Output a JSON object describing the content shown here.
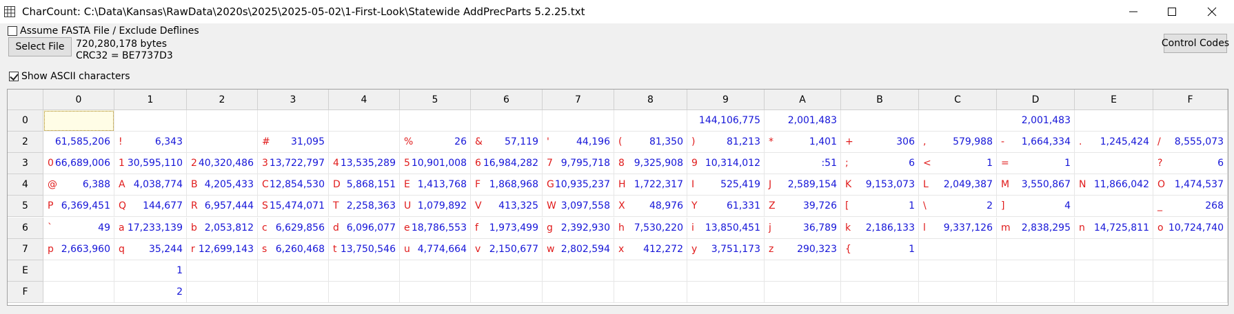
{
  "window": {
    "title": "CharCount:  C:\\Data\\Kansas\\RawData\\2020s\\2025\\2025-05-02\\1-First-Look\\Statewide AddPrecParts 5.2.25.txt",
    "minimize_glyph": "—",
    "maximize_glyph": "☐",
    "close_glyph": "✕"
  },
  "options": {
    "fasta_label": "Assume FASTA File / Exclude Deflines",
    "fasta_checked": false,
    "show_ascii_label": "Show ASCII characters",
    "show_ascii_checked": true
  },
  "file": {
    "select_label": "Select File",
    "size_text": "720,280,178 bytes",
    "crc_text": "CRC32 = BE7737D3"
  },
  "control_codes_label": "Control Codes",
  "grid": {
    "columns": [
      "0",
      "1",
      "2",
      "3",
      "4",
      "5",
      "6",
      "7",
      "8",
      "9",
      "A",
      "B",
      "C",
      "D",
      "E",
      "F"
    ],
    "rows": [
      {
        "label": "0",
        "cells": [
          {
            "c": "",
            "n": ""
          },
          {
            "c": "",
            "n": ""
          },
          {
            "c": "",
            "n": ""
          },
          {
            "c": "",
            "n": ""
          },
          {
            "c": "",
            "n": ""
          },
          {
            "c": "",
            "n": ""
          },
          {
            "c": "",
            "n": ""
          },
          {
            "c": "",
            "n": ""
          },
          {
            "c": "",
            "n": ""
          },
          {
            "c": "",
            "n": "144,106,775"
          },
          {
            "c": "",
            "n": "2,001,483"
          },
          {
            "c": "",
            "n": ""
          },
          {
            "c": "",
            "n": ""
          },
          {
            "c": "",
            "n": "2,001,483"
          },
          {
            "c": "",
            "n": ""
          },
          {
            "c": "",
            "n": ""
          }
        ]
      },
      {
        "label": "2",
        "cells": [
          {
            "c": "",
            "n": "61,585,206"
          },
          {
            "c": "!",
            "n": "6,343"
          },
          {
            "c": "",
            "n": ""
          },
          {
            "c": "#",
            "n": "31,095"
          },
          {
            "c": "",
            "n": ""
          },
          {
            "c": "%",
            "n": "26"
          },
          {
            "c": "&",
            "n": "57,119"
          },
          {
            "c": "'",
            "n": "44,196"
          },
          {
            "c": "(",
            "n": "81,350"
          },
          {
            "c": ")",
            "n": "81,213"
          },
          {
            "c": "*",
            "n": "1,401"
          },
          {
            "c": "+",
            "n": "306"
          },
          {
            "c": ",",
            "n": "579,988"
          },
          {
            "c": "-",
            "n": "1,664,334"
          },
          {
            "c": ".",
            "n": "1,245,424"
          },
          {
            "c": "/",
            "n": "8,555,073"
          }
        ]
      },
      {
        "label": "3",
        "cells": [
          {
            "c": "0",
            "n": "66,689,006"
          },
          {
            "c": "1",
            "n": "30,595,110"
          },
          {
            "c": "2",
            "n": "40,320,486"
          },
          {
            "c": "3",
            "n": "13,722,797"
          },
          {
            "c": "4",
            "n": "13,535,289"
          },
          {
            "c": "5",
            "n": "10,901,008"
          },
          {
            "c": "6",
            "n": "16,984,282"
          },
          {
            "c": "7",
            "n": "9,795,718"
          },
          {
            "c": "8",
            "n": "9,325,908"
          },
          {
            "c": "9",
            "n": "10,314,012"
          },
          {
            "c": "",
            "n": ":51"
          },
          {
            "c": ";",
            "n": "6"
          },
          {
            "c": "<",
            "n": "1"
          },
          {
            "c": "=",
            "n": "1"
          },
          {
            "c": "",
            "n": ""
          },
          {
            "c": "?",
            "n": "6"
          }
        ]
      },
      {
        "label": "4",
        "cells": [
          {
            "c": "@",
            "n": "6,388"
          },
          {
            "c": "A",
            "n": "4,038,774"
          },
          {
            "c": "B",
            "n": "4,205,433"
          },
          {
            "c": "C",
            "n": "12,854,530"
          },
          {
            "c": "D",
            "n": "5,868,151"
          },
          {
            "c": "E",
            "n": "1,413,768"
          },
          {
            "c": "F",
            "n": "1,868,968"
          },
          {
            "c": "G",
            "n": "10,935,237"
          },
          {
            "c": "H",
            "n": "1,722,317"
          },
          {
            "c": "I",
            "n": "525,419"
          },
          {
            "c": "J",
            "n": "2,589,154"
          },
          {
            "c": "K",
            "n": "9,153,073"
          },
          {
            "c": "L",
            "n": "2,049,387"
          },
          {
            "c": "M",
            "n": "3,550,867"
          },
          {
            "c": "N",
            "n": "11,866,042"
          },
          {
            "c": "O",
            "n": "1,474,537"
          }
        ]
      },
      {
        "label": "5",
        "cells": [
          {
            "c": "P",
            "n": "6,369,451"
          },
          {
            "c": "Q",
            "n": "144,677"
          },
          {
            "c": "R",
            "n": "6,957,444"
          },
          {
            "c": "S",
            "n": "15,474,071"
          },
          {
            "c": "T",
            "n": "2,258,363"
          },
          {
            "c": "U",
            "n": "1,079,892"
          },
          {
            "c": "V",
            "n": "413,325"
          },
          {
            "c": "W",
            "n": "3,097,558"
          },
          {
            "c": "X",
            "n": "48,976"
          },
          {
            "c": "Y",
            "n": "61,331"
          },
          {
            "c": "Z",
            "n": "39,726"
          },
          {
            "c": "[",
            "n": "1"
          },
          {
            "c": "\\",
            "n": "2"
          },
          {
            "c": "]",
            "n": "4"
          },
          {
            "c": "",
            "n": ""
          },
          {
            "c": "_",
            "n": "268"
          }
        ]
      },
      {
        "label": "6",
        "cells": [
          {
            "c": "`",
            "n": "49"
          },
          {
            "c": "a",
            "n": "17,233,139"
          },
          {
            "c": "b",
            "n": "2,053,812"
          },
          {
            "c": "c",
            "n": "6,629,856"
          },
          {
            "c": "d",
            "n": "6,096,077"
          },
          {
            "c": "e",
            "n": "18,786,553"
          },
          {
            "c": "f",
            "n": "1,973,499"
          },
          {
            "c": "g",
            "n": "2,392,930"
          },
          {
            "c": "h",
            "n": "7,530,220"
          },
          {
            "c": "i",
            "n": "13,850,451"
          },
          {
            "c": "j",
            "n": "36,789"
          },
          {
            "c": "k",
            "n": "2,186,133"
          },
          {
            "c": "l",
            "n": "9,337,126"
          },
          {
            "c": "m",
            "n": "2,838,295"
          },
          {
            "c": "n",
            "n": "14,725,811"
          },
          {
            "c": "o",
            "n": "10,724,740"
          }
        ]
      },
      {
        "label": "7",
        "cells": [
          {
            "c": "p",
            "n": "2,663,960"
          },
          {
            "c": "q",
            "n": "35,244"
          },
          {
            "c": "r",
            "n": "12,699,143"
          },
          {
            "c": "s",
            "n": "6,260,468"
          },
          {
            "c": "t",
            "n": "13,750,546"
          },
          {
            "c": "u",
            "n": "4,774,664"
          },
          {
            "c": "v",
            "n": "2,150,677"
          },
          {
            "c": "w",
            "n": "2,802,594"
          },
          {
            "c": "x",
            "n": "412,272"
          },
          {
            "c": "y",
            "n": "3,751,173"
          },
          {
            "c": "z",
            "n": "290,323"
          },
          {
            "c": "{",
            "n": "1"
          },
          {
            "c": "",
            "n": ""
          },
          {
            "c": "",
            "n": ""
          },
          {
            "c": "",
            "n": ""
          },
          {
            "c": "",
            "n": ""
          }
        ]
      },
      {
        "label": "E",
        "cells": [
          {
            "c": "",
            "n": ""
          },
          {
            "c": "",
            "n": "1"
          },
          {
            "c": "",
            "n": ""
          },
          {
            "c": "",
            "n": ""
          },
          {
            "c": "",
            "n": ""
          },
          {
            "c": "",
            "n": ""
          },
          {
            "c": "",
            "n": ""
          },
          {
            "c": "",
            "n": ""
          },
          {
            "c": "",
            "n": ""
          },
          {
            "c": "",
            "n": ""
          },
          {
            "c": "",
            "n": ""
          },
          {
            "c": "",
            "n": ""
          },
          {
            "c": "",
            "n": ""
          },
          {
            "c": "",
            "n": ""
          },
          {
            "c": "",
            "n": ""
          },
          {
            "c": "",
            "n": ""
          }
        ]
      },
      {
        "label": "F",
        "cells": [
          {
            "c": "",
            "n": ""
          },
          {
            "c": "",
            "n": "2"
          },
          {
            "c": "",
            "n": ""
          },
          {
            "c": "",
            "n": ""
          },
          {
            "c": "",
            "n": ""
          },
          {
            "c": "",
            "n": ""
          },
          {
            "c": "",
            "n": ""
          },
          {
            "c": "",
            "n": ""
          },
          {
            "c": "",
            "n": ""
          },
          {
            "c": "",
            "n": ""
          },
          {
            "c": "",
            "n": ""
          },
          {
            "c": "",
            "n": ""
          },
          {
            "c": "",
            "n": ""
          },
          {
            "c": "",
            "n": ""
          },
          {
            "c": "",
            "n": ""
          },
          {
            "c": "",
            "n": ""
          }
        ]
      }
    ]
  }
}
